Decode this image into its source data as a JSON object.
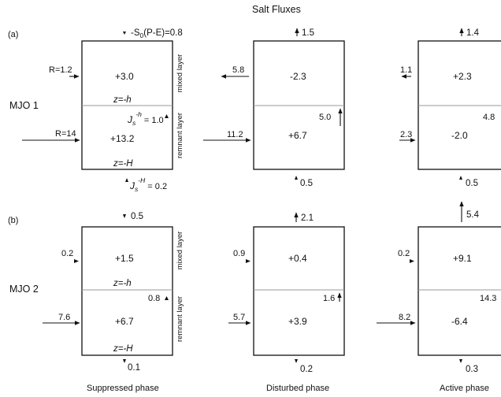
{
  "title": "Salt Fluxes",
  "panel_labels": {
    "a": "(a)",
    "b": "(b)"
  },
  "row_labels": {
    "row1": "MJO 1",
    "row2": "MJO 2"
  },
  "side_labels": {
    "mixed": "mixed layer",
    "remnant": "remnant layer"
  },
  "column_labels": [
    "Suppressed phase",
    "Disturbed phase",
    "Active phase"
  ],
  "annotations": {
    "z_h": "z=-h",
    "z_H": "z=-H",
    "surface_flux": "-S",
    "surface_flux_sub": "0",
    "surface_flux_rest": "(P-E)=0.8",
    "r_small": "R=1.2",
    "r_large": "R=14",
    "js": "J",
    "js_sub": "s",
    "js_h_sup": "-h",
    "js_H_sup": "-H",
    "js_h_val": " = 1.0",
    "js_H_val": " = 0.2"
  },
  "row1": {
    "suppressed": {
      "mixed": "+3.0",
      "remnant": "+13.2"
    },
    "disturbed": {
      "top": "1.5",
      "mixed_lateral": "5.8",
      "mixed": "-2.3",
      "interface": "5.0",
      "remnant_lateral": "11.2",
      "remnant": "+6.7",
      "bottom": "0.5"
    },
    "active": {
      "top": "1.4",
      "mixed_lateral": "1.1",
      "mixed": "+2.3",
      "interface": "4.8",
      "remnant_lateral": "2.3",
      "remnant": "-2.0",
      "bottom": "0.5"
    }
  },
  "row2": {
    "suppressed": {
      "top": "0.5",
      "mixed_lateral": "0.2",
      "mixed": "+1.5",
      "interface": "0.8",
      "remnant_lateral": "7.6",
      "remnant": "+6.7",
      "bottom": "0.1"
    },
    "disturbed": {
      "top": "2.1",
      "mixed_lateral": "0.9",
      "mixed": "+0.4",
      "interface": "1.6",
      "remnant_lateral": "5.7",
      "remnant": "+3.9",
      "bottom": "0.2"
    },
    "active": {
      "top": "5.4",
      "mixed_lateral": "0.2",
      "mixed": "+9.1",
      "interface": "14.3",
      "remnant_lateral": "8.2",
      "remnant": "-6.4",
      "bottom": "0.3"
    }
  }
}
